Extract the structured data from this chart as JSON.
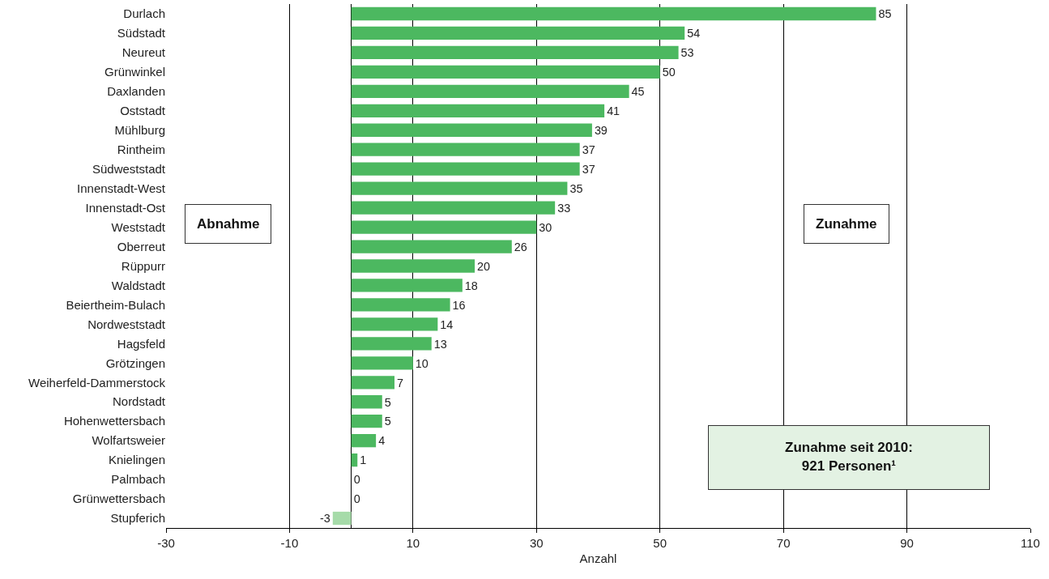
{
  "chart_data": {
    "type": "bar",
    "orientation": "horizontal",
    "xlabel": "Anzahl",
    "categories": [
      "Durlach",
      "Südstadt",
      "Neureut",
      "Grünwinkel",
      "Daxlanden",
      "Oststadt",
      "Mühlburg",
      "Rintheim",
      "Südweststadt",
      "Innenstadt-West",
      "Innenstadt-Ost",
      "Weststadt",
      "Oberreut",
      "Rüppurr",
      "Waldstadt",
      "Beiertheim-Bulach",
      "Nordweststadt",
      "Hagsfeld",
      "Grötzingen",
      "Weiherfeld-Dammerstock",
      "Nordstadt",
      "Hohenwettersbach",
      "Wolfartsweier",
      "Knielingen",
      "Palmbach",
      "Grünwettersbach",
      "Stupferich"
    ],
    "values": [
      85,
      54,
      53,
      50,
      45,
      41,
      39,
      37,
      37,
      35,
      33,
      30,
      26,
      20,
      18,
      16,
      14,
      13,
      10,
      7,
      5,
      5,
      4,
      1,
      0,
      0,
      -3
    ],
    "colors": [
      "#4cb860",
      "#4cb860",
      "#4cb860",
      "#4cb860",
      "#4cb860",
      "#4cb860",
      "#4cb860",
      "#4cb860",
      "#4cb860",
      "#4cb860",
      "#4cb860",
      "#4cb860",
      "#4cb860",
      "#4cb860",
      "#4cb860",
      "#4cb860",
      "#4cb860",
      "#4cb860",
      "#4cb860",
      "#4cb860",
      "#4cb860",
      "#4cb860",
      "#4cb860",
      "#4cb860",
      "#4cb860",
      "#4cb860",
      "#a6dba9"
    ],
    "data_labels": true,
    "xlim": [
      -30,
      110
    ],
    "xticks": [
      -30,
      -10,
      10,
      30,
      50,
      70,
      90,
      110
    ],
    "grid": "x",
    "annotations": [
      "Abnahme",
      "Zunahme",
      "Zunahme seit 2010:\n921 Personen¹"
    ]
  }
}
